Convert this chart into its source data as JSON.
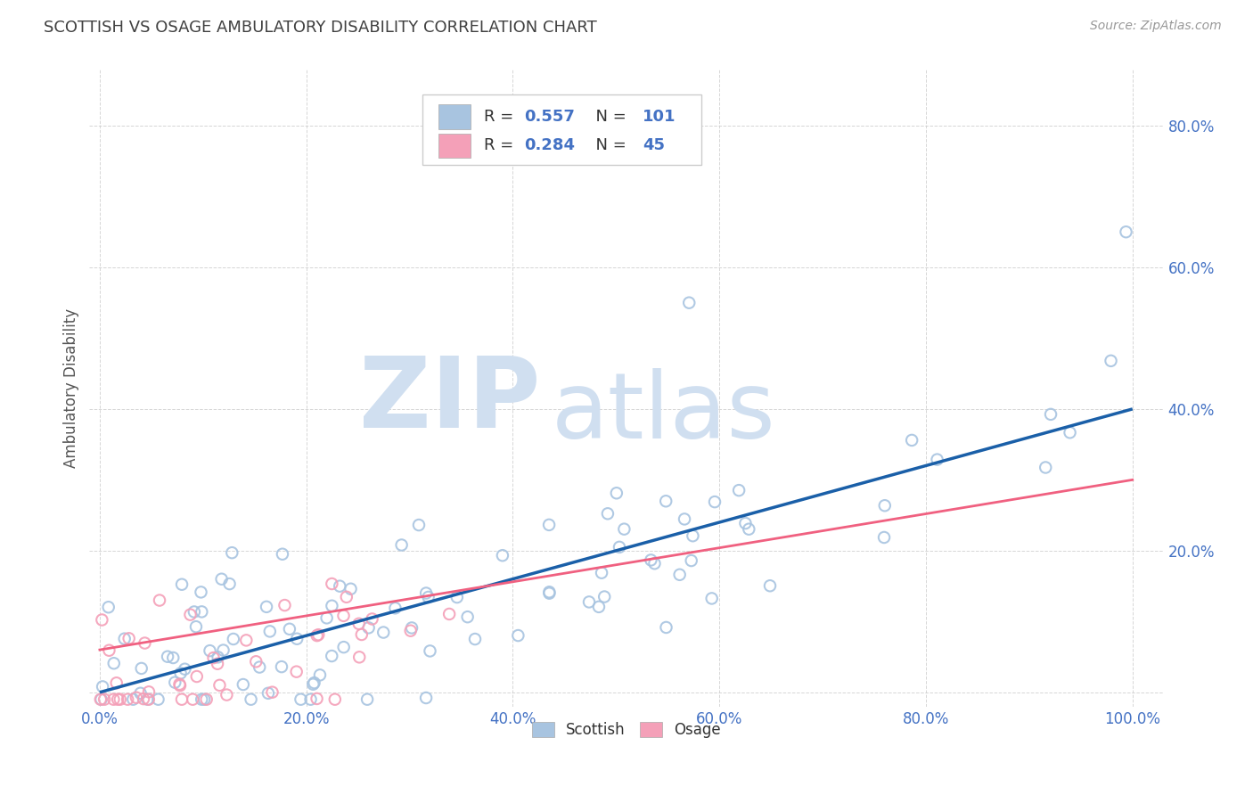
{
  "title": "SCOTTISH VS OSAGE AMBULATORY DISABILITY CORRELATION CHART",
  "source_text": "Source: ZipAtlas.com",
  "ylabel": "Ambulatory Disability",
  "R_scottish": 0.557,
  "N_scottish": 101,
  "R_osage": 0.284,
  "N_osage": 45,
  "scottish_color": "#a8c4e0",
  "osage_color": "#f4a0b8",
  "trend_scottish_color": "#1a5fa8",
  "trend_osage_color": "#f06080",
  "background_color": "#ffffff",
  "grid_color": "#cccccc",
  "xlim": [
    -0.01,
    1.03
  ],
  "ylim": [
    -0.02,
    0.88
  ],
  "xticks": [
    0.0,
    0.2,
    0.4,
    0.6,
    0.8,
    1.0
  ],
  "yticks": [
    0.0,
    0.2,
    0.4,
    0.6,
    0.8
  ],
  "xticklabels": [
    "0.0%",
    "20.0%",
    "40.0%",
    "60.0%",
    "80.0%",
    "100.0%"
  ],
  "yticklabels": [
    "",
    "20.0%",
    "40.0%",
    "60.0%",
    "80.0%"
  ],
  "tick_label_color": "#4472c4",
  "title_color": "#404040",
  "watermark_zip": "ZIP",
  "watermark_atlas": "atlas",
  "watermark_color": "#d0dff0",
  "legend_text_color": "#4472c4",
  "legend_label_color": "#333333"
}
